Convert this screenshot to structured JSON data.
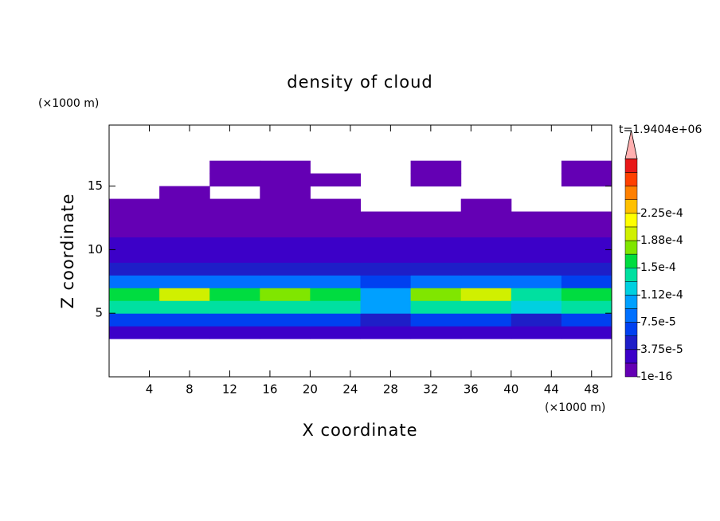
{
  "chart_data": {
    "type": "contour",
    "title": "density of cloud",
    "time_label": "t=1.9404e+06",
    "x_label": "X coordinate",
    "y_label": "Z coordinate",
    "x_unit": "(×1000 m)",
    "y_unit": "(×1000 m)",
    "xlim": [
      0,
      50
    ],
    "ylim": [
      0,
      19.8
    ],
    "xticks": [
      4,
      8,
      12,
      16,
      20,
      24,
      28,
      32,
      36,
      40,
      44,
      48
    ],
    "yticks": [
      5,
      10,
      15
    ],
    "x": [
      2.5,
      7.5,
      12.5,
      17.5,
      22.5,
      27.5,
      32.5,
      37.5,
      42.5,
      47.5
    ],
    "z": [
      3.5,
      4.5,
      5.5,
      6.5,
      7.5,
      8.5,
      9.5,
      10.5,
      11.5,
      12.5,
      13.5,
      14.5,
      15.5,
      16.5
    ],
    "values": [
      [
        2e-05,
        2e-05,
        2e-05,
        2e-05,
        2e-05,
        2e-05,
        2e-05,
        2e-05,
        2e-05,
        2e-05
      ],
      [
        6e-05,
        6e-05,
        6e-05,
        6e-05,
        6e-05,
        5e-05,
        6e-05,
        6e-05,
        5e-05,
        6e-05
      ],
      [
        0.00014,
        0.00015,
        0.00014,
        0.00015,
        0.00014,
        0.0001,
        0.00015,
        0.00015,
        0.00012,
        0.00014
      ],
      [
        0.00016,
        0.00019,
        0.00016,
        0.00018,
        0.00016,
        0.0001,
        0.00017,
        0.00019,
        0.00015,
        0.00016
      ],
      [
        8e-05,
        9e-05,
        8e-05,
        9e-05,
        8e-05,
        6e-05,
        8e-05,
        9e-05,
        8e-05,
        7e-05
      ],
      [
        4e-05,
        4e-05,
        4e-05,
        4e-05,
        4e-05,
        4e-05,
        4e-05,
        4e-05,
        4e-05,
        4e-05
      ],
      [
        3e-05,
        3e-05,
        3e-05,
        3e-05,
        3e-05,
        3e-05,
        3e-05,
        3e-05,
        3e-05,
        3e-05
      ],
      [
        2e-05,
        2e-05,
        2e-05,
        2e-05,
        2e-05,
        2e-05,
        2e-05,
        2e-05,
        2e-05,
        2e-05
      ],
      [
        1.5e-05,
        1.5e-05,
        1.5e-05,
        1.5e-05,
        1.5e-05,
        1.5e-05,
        1.5e-05,
        1.5e-05,
        1.5e-05,
        1.5e-05
      ],
      [
        1e-05,
        1e-05,
        1e-05,
        1e-05,
        1e-05,
        1e-05,
        1e-05,
        1e-05,
        1e-05,
        1e-05
      ],
      [
        5e-06,
        5e-06,
        5e-06,
        5e-06,
        5e-06,
        null,
        null,
        5e-06,
        null,
        null
      ],
      [
        null,
        5e-06,
        null,
        5e-06,
        null,
        null,
        null,
        null,
        null,
        null
      ],
      [
        null,
        null,
        3e-06,
        3e-06,
        3e-06,
        null,
        3e-06,
        null,
        null,
        3e-06
      ],
      [
        null,
        null,
        2e-06,
        2e-06,
        null,
        null,
        2e-06,
        null,
        null,
        2e-06
      ]
    ],
    "levels": [
      {
        "value": 1e-16,
        "label": "1e-16"
      },
      {
        "value": 3.75e-05,
        "label": "3.75e-5"
      },
      {
        "value": 7.5e-05,
        "label": "7.5e-5"
      },
      {
        "value": 0.000112,
        "label": "1.12e-4"
      },
      {
        "value": 0.00015,
        "label": "1.5e-4"
      },
      {
        "value": 0.000188,
        "label": "1.88e-4"
      },
      {
        "value": 0.000225,
        "label": "2.25e-4"
      }
    ],
    "colors": [
      "#6400b4",
      "#3c00c8",
      "#1e1ec8",
      "#0040f0",
      "#0070ff",
      "#00a0ff",
      "#00d0e0",
      "#00e0a0",
      "#00dc40",
      "#80e600",
      "#d0f000",
      "#ffff00",
      "#ffc000",
      "#ff8000",
      "#ff4000",
      "#e81818"
    ],
    "extend_color": "#ffb0b0"
  }
}
